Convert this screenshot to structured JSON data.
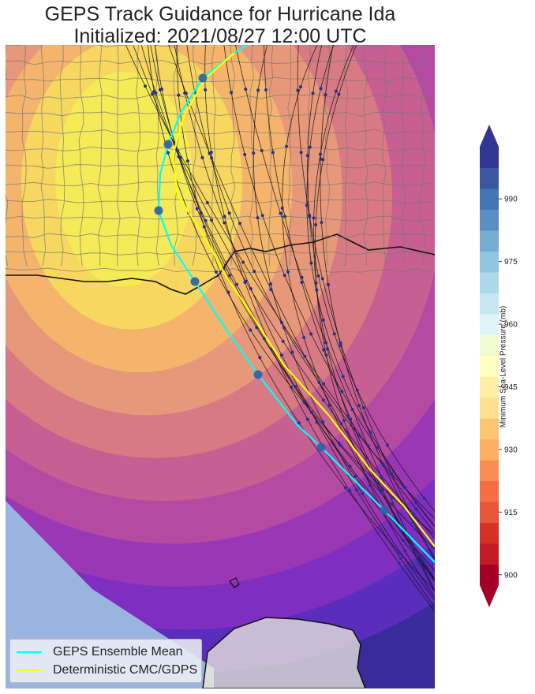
{
  "title": {
    "line1": "GEPS Track Guidance for Hurricane Ida",
    "line2": "Initialized: 2021/08/27 12:00 UTC"
  },
  "colorbar": {
    "label": "Minimum Sea-Level Pressure (mb)",
    "ticks": [
      "900",
      "915",
      "930",
      "945",
      "960",
      "975",
      "990"
    ],
    "colors_bottom_to_top": [
      "#a50026",
      "#c41a28",
      "#d73027",
      "#e8553a",
      "#f46d43",
      "#f88e52",
      "#fdae61",
      "#fdc474",
      "#fee090",
      "#fff0a6",
      "#ffffbf",
      "#f2fad0",
      "#e0f3f8",
      "#c6e6f1",
      "#abd9e9",
      "#92c5de",
      "#74add1",
      "#5b8fc4",
      "#4575b4",
      "#3a57a0",
      "#313695"
    ],
    "extend": "both"
  },
  "legend": {
    "items": [
      {
        "label": "GEPS Ensemble Mean",
        "color": "#00ffff"
      },
      {
        "label": "Deterministic CMC/GDPS",
        "color": "#ffff00"
      }
    ],
    "position": "lower-left"
  },
  "map": {
    "region": "U.S. Gulf Coast, Gulf of Mexico and Yucatan Peninsula",
    "shading_colors": [
      "#3a2a9a",
      "#5a2dbd",
      "#7e2fbf",
      "#9a37b4",
      "#b54aa3",
      "#c75f92",
      "#d77a84",
      "#e8987a",
      "#f4b46c",
      "#f7d760",
      "#f5ea57"
    ],
    "land_color": "#efeedd",
    "outside_domain_color": "#9ab4e0",
    "ensemble_mean_color": "#00ffff",
    "deterministic_color": "#ffff00",
    "member_track_color": "#111111",
    "point_color": "#23308f"
  }
}
